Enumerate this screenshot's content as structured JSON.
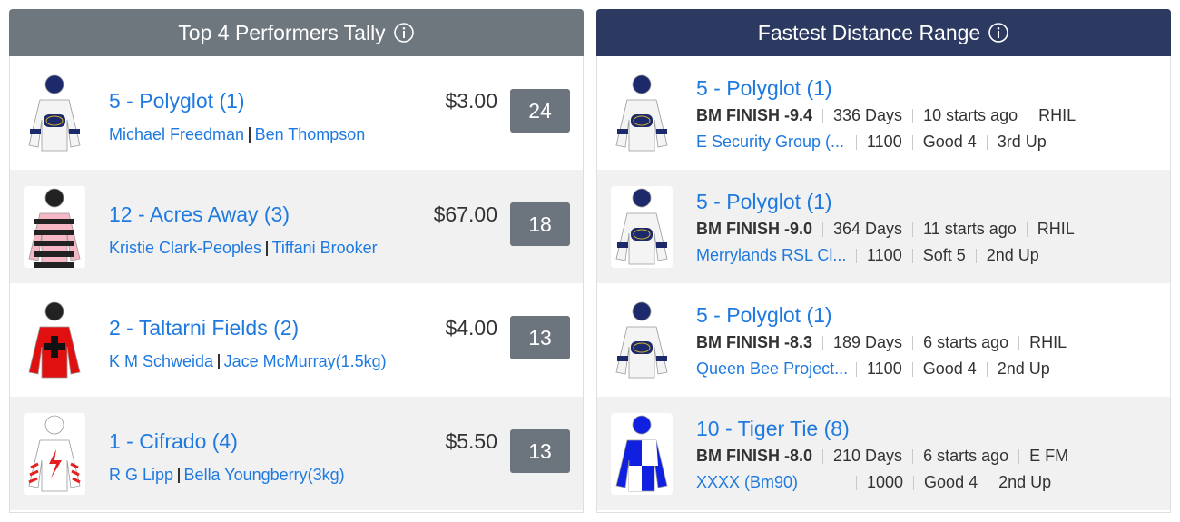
{
  "top_performers": {
    "title": "Top 4 Performers Tally",
    "rows": [
      {
        "horse": "5 - Polyglot (1)",
        "jockey": "Michael Freedman",
        "trainer": "Ben Thompson",
        "price": "$3.00",
        "tally": "24"
      },
      {
        "horse": "12 - Acres Away (3)",
        "jockey": "Kristie Clark-Peoples",
        "trainer": "Tiffani Brooker",
        "price": "$67.00",
        "tally": "18"
      },
      {
        "horse": "2 - Taltarni Fields (2)",
        "jockey": "K M Schweida",
        "trainer": "Jace McMurray(1.5kg)",
        "price": "$4.00",
        "tally": "13"
      },
      {
        "horse": "1 - Cifrado (4)",
        "jockey": "R G Lipp",
        "trainer": "Bella Youngberry(3kg)",
        "price": "$5.50",
        "tally": "13"
      }
    ]
  },
  "fastest_distance": {
    "title": "Fastest Distance Range",
    "rows": [
      {
        "horse": "5 - Polyglot (1)",
        "finish": "BM FINISH -9.4",
        "days": "336 Days",
        "starts": "10 starts ago",
        "track": "RHIL",
        "race": "E Security Group (...",
        "distance": "1100",
        "condition": "Good 4",
        "up": "3rd Up"
      },
      {
        "horse": "5 - Polyglot (1)",
        "finish": "BM FINISH -9.0",
        "days": "364 Days",
        "starts": "11 starts ago",
        "track": "RHIL",
        "race": "Merrylands RSL Cl...",
        "distance": "1100",
        "condition": "Soft 5",
        "up": "2nd Up"
      },
      {
        "horse": "5 - Polyglot (1)",
        "finish": "BM FINISH -8.3",
        "days": "189 Days",
        "starts": "6 starts ago",
        "track": "RHIL",
        "race": "Queen Bee Project...",
        "distance": "1100",
        "condition": "Good 4",
        "up": "2nd Up"
      },
      {
        "horse": "10 - Tiger Tie (8)",
        "finish": "BM FINISH -8.0",
        "days": "210 Days",
        "starts": "6 starts ago",
        "track": "E FM",
        "race": "XXXX (Bm90)",
        "distance": "1000",
        "condition": "Good 4",
        "up": "2nd Up"
      }
    ]
  }
}
